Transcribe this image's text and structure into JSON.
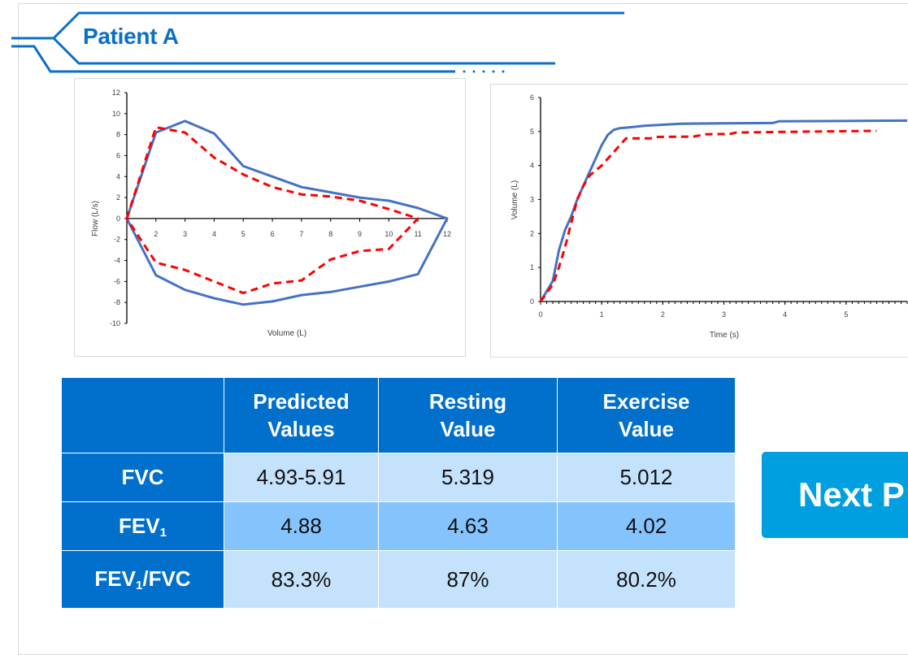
{
  "header": {
    "title": "Patient A",
    "accent_color": "#0a6fc9"
  },
  "chart_data": [
    {
      "type": "line",
      "xlabel": "Volume (L)",
      "ylabel": "Flow (L/s)",
      "xlim": [
        1,
        12
      ],
      "ylim": [
        -10,
        12
      ],
      "x_ticks": [
        2,
        3,
        4,
        5,
        6,
        7,
        8,
        9,
        10,
        11,
        12
      ],
      "y_ticks": [
        12,
        10,
        8,
        6,
        4,
        2,
        0,
        -2,
        -4,
        -6,
        -8,
        -10
      ],
      "grid": false,
      "legend": "none",
      "series": [
        {
          "color": "#4472c4",
          "style": "solid",
          "points": [
            [
              1,
              0
            ],
            [
              2,
              8.2
            ],
            [
              3,
              9.3
            ],
            [
              4,
              8.1
            ],
            [
              5,
              5
            ],
            [
              6,
              4
            ],
            [
              7,
              3
            ],
            [
              8,
              2.5
            ],
            [
              9,
              2
            ],
            [
              10,
              1.7
            ],
            [
              11,
              1
            ],
            [
              12,
              0
            ],
            [
              11,
              -5.3
            ],
            [
              10,
              -6
            ],
            [
              9,
              -6.5
            ],
            [
              8,
              -7
            ],
            [
              7,
              -7.3
            ],
            [
              6,
              -7.9
            ],
            [
              5,
              -8.2
            ],
            [
              4,
              -7.6
            ],
            [
              3,
              -6.8
            ],
            [
              2,
              -5.4
            ],
            [
              1,
              0
            ]
          ]
        },
        {
          "color": "#ff0000",
          "style": "dashed",
          "points": [
            [
              1,
              0
            ],
            [
              2,
              8.7
            ],
            [
              3,
              8.2
            ],
            [
              4,
              5.8
            ],
            [
              5,
              4.2
            ],
            [
              6,
              3
            ],
            [
              7,
              2.3
            ],
            [
              8,
              2.1
            ],
            [
              9,
              1.7
            ],
            [
              10,
              0.9
            ],
            [
              11,
              0
            ],
            [
              10,
              -2.9
            ],
            [
              9,
              -3.1
            ],
            [
              8,
              -3.9
            ],
            [
              7,
              -5.9
            ],
            [
              6,
              -6.2
            ],
            [
              5,
              -7.1
            ],
            [
              4,
              -6
            ],
            [
              3,
              -4.9
            ],
            [
              2,
              -4.2
            ],
            [
              1,
              0
            ]
          ]
        }
      ]
    },
    {
      "type": "line",
      "xlabel": "Time (s)",
      "ylabel": "Volume (L)",
      "xlim": [
        0,
        6
      ],
      "ylim": [
        0,
        6
      ],
      "x_ticks": [
        0,
        1,
        2,
        3,
        4,
        5
      ],
      "y_ticks": [
        0,
        1,
        2,
        3,
        4,
        5,
        6
      ],
      "grid": false,
      "legend": "none",
      "series": [
        {
          "color": "#4472c4",
          "style": "solid",
          "points": [
            [
              0,
              0
            ],
            [
              0.2,
              0.6
            ],
            [
              0.3,
              1.5
            ],
            [
              0.4,
              2.1
            ],
            [
              0.5,
              2.5
            ],
            [
              0.6,
              3
            ],
            [
              0.7,
              3.4
            ],
            [
              0.8,
              3.8
            ],
            [
              0.9,
              4.2
            ],
            [
              1,
              4.6
            ],
            [
              1.1,
              4.9
            ],
            [
              1.2,
              5.05
            ],
            [
              1.3,
              5.1
            ],
            [
              1.5,
              5.13
            ],
            [
              1.7,
              5.17
            ],
            [
              2,
              5.2
            ],
            [
              2.3,
              5.23
            ],
            [
              3,
              5.24
            ],
            [
              3.8,
              5.25
            ],
            [
              3.9,
              5.3
            ],
            [
              6,
              5.32
            ]
          ]
        },
        {
          "color": "#ff0000",
          "style": "dashed",
          "points": [
            [
              0,
              0
            ],
            [
              0.2,
              0.5
            ],
            [
              0.3,
              1
            ],
            [
              0.4,
              1.6
            ],
            [
              0.5,
              2.3
            ],
            [
              0.6,
              3
            ],
            [
              0.7,
              3.4
            ],
            [
              0.8,
              3.7
            ],
            [
              1,
              4
            ],
            [
              1.1,
              4.2
            ],
            [
              1.2,
              4.4
            ],
            [
              1.3,
              4.6
            ],
            [
              1.4,
              4.8
            ],
            [
              1.8,
              4.8
            ],
            [
              1.9,
              4.84
            ],
            [
              2.5,
              4.85
            ],
            [
              2.7,
              4.92
            ],
            [
              3.1,
              4.93
            ],
            [
              3.2,
              4.97
            ],
            [
              4,
              4.99
            ],
            [
              5,
              5.01
            ],
            [
              5.5,
              5.02
            ]
          ]
        }
      ]
    }
  ],
  "table": {
    "headers": [
      [
        "",
        ""
      ],
      [
        "Predicted",
        "Values"
      ],
      [
        "Resting",
        "Value"
      ],
      [
        "Exercise",
        "Value"
      ]
    ],
    "rows": [
      {
        "label": "FVC",
        "label_sub": "",
        "label_suffix": "",
        "values": [
          "4.93-5.91",
          "5.319",
          "5.012"
        ]
      },
      {
        "label": "FEV",
        "label_sub": "1",
        "label_suffix": "",
        "values": [
          "4.88",
          "4.63",
          "4.02"
        ]
      },
      {
        "label": "FEV",
        "label_sub": "1",
        "label_suffix": "/FVC",
        "values": [
          "83.3%",
          "87%",
          "80.2%"
        ]
      }
    ]
  },
  "next_button": {
    "label": "Next P",
    "color": "#00a0e0"
  }
}
